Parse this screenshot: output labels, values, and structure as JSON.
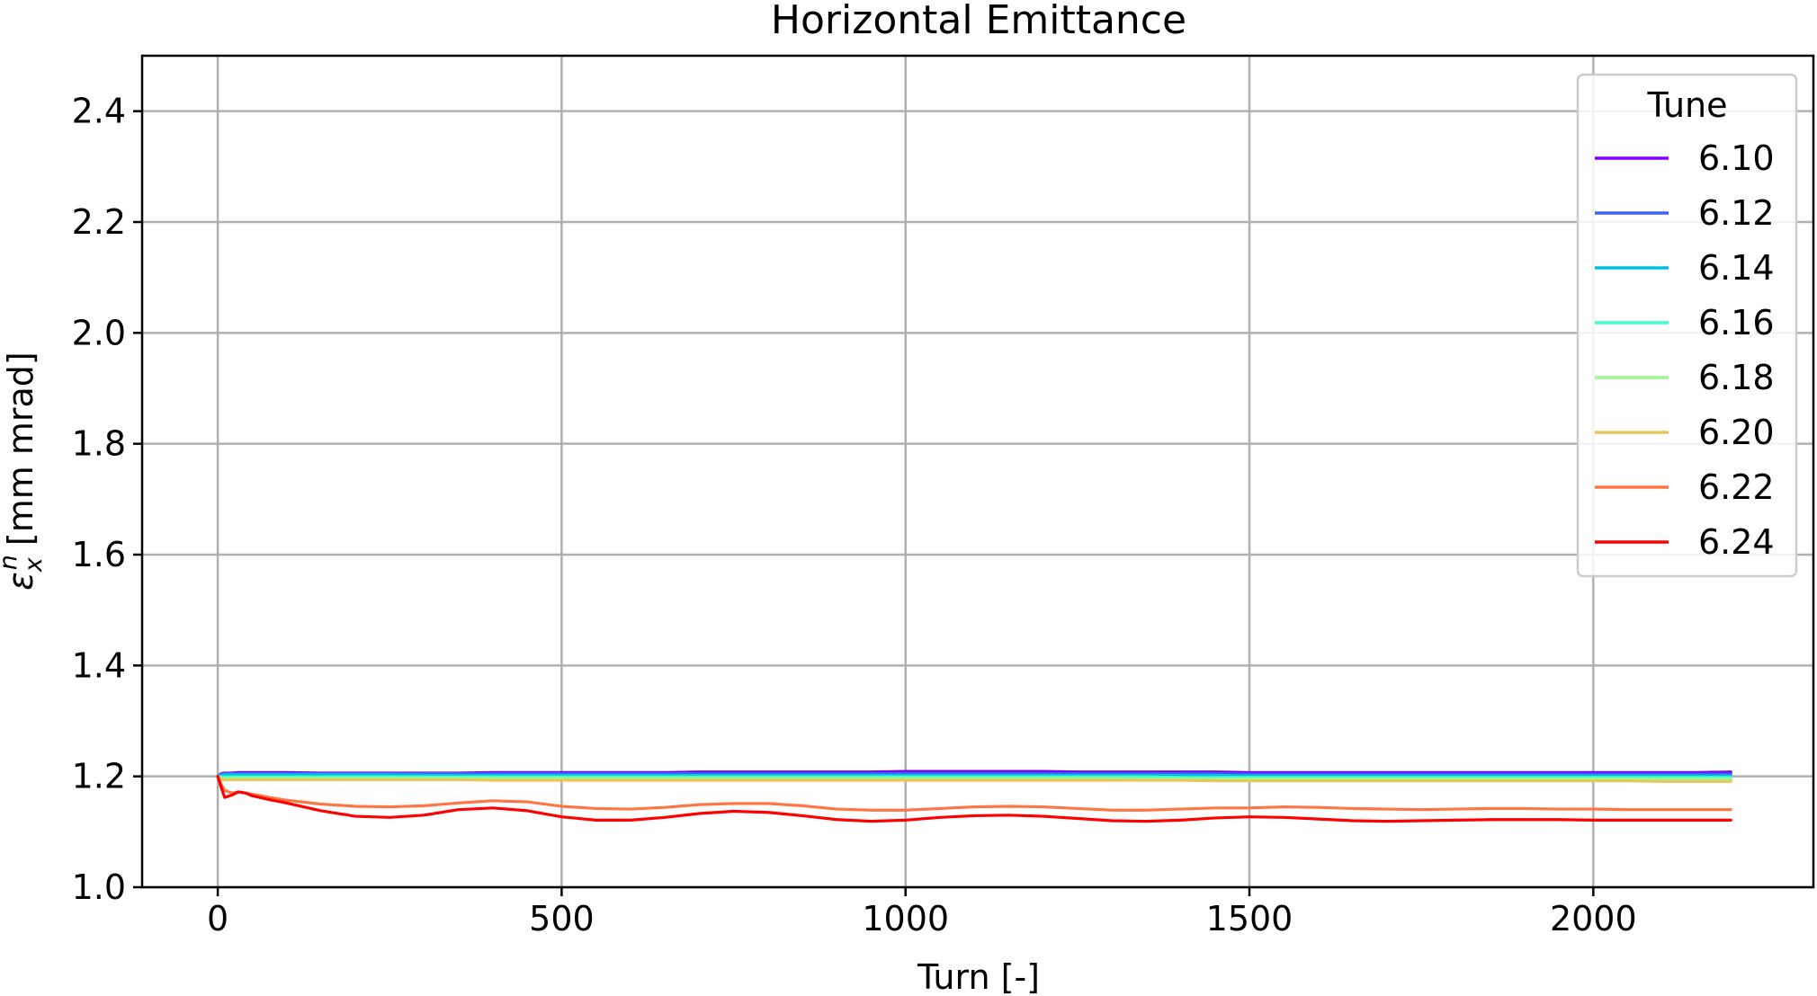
{
  "chart_data": {
    "type": "line",
    "title": "Horizontal Emittance",
    "xlabel": "Turn [-]",
    "ylabel_parts": {
      "symbol": "ε",
      "superscript": "n",
      "subscript": "x",
      "unit": "[mm mrad]"
    },
    "xlim": [
      -110,
      2320
    ],
    "ylim": [
      1.0,
      2.5
    ],
    "xticks": [
      0,
      500,
      1000,
      1500,
      2000
    ],
    "xtick_labels": [
      "0",
      "500",
      "1000",
      "1500",
      "2000"
    ],
    "yticks": [
      1.0,
      1.2,
      1.4,
      1.6,
      1.8,
      2.0,
      2.2,
      2.4
    ],
    "ytick_labels": [
      "1.0",
      "1.2",
      "1.4",
      "1.6",
      "1.8",
      "2.0",
      "2.2",
      "2.4"
    ],
    "grid": true,
    "legend": {
      "title": "Tune",
      "placement": "top-right"
    },
    "x": [
      0,
      5,
      10,
      20,
      30,
      40,
      50,
      75,
      100,
      150,
      200,
      250,
      300,
      350,
      400,
      450,
      500,
      550,
      600,
      650,
      700,
      750,
      800,
      850,
      900,
      950,
      1000,
      1050,
      1100,
      1150,
      1200,
      1250,
      1300,
      1350,
      1400,
      1450,
      1500,
      1550,
      1600,
      1650,
      1700,
      1750,
      1800,
      1850,
      1900,
      1950,
      2000,
      2050,
      2100,
      2150,
      2200
    ],
    "series": [
      {
        "name": "6.10",
        "color": "#7f00ff",
        "values": [
          1.2,
          1.205,
          1.206,
          1.206,
          1.207,
          1.207,
          1.207,
          1.207,
          1.207,
          1.206,
          1.206,
          1.206,
          1.206,
          1.206,
          1.207,
          1.207,
          1.207,
          1.207,
          1.207,
          1.207,
          1.208,
          1.208,
          1.208,
          1.208,
          1.208,
          1.208,
          1.209,
          1.209,
          1.209,
          1.209,
          1.209,
          1.208,
          1.208,
          1.208,
          1.208,
          1.208,
          1.207,
          1.207,
          1.207,
          1.207,
          1.207,
          1.207,
          1.207,
          1.207,
          1.207,
          1.207,
          1.207,
          1.207,
          1.207,
          1.207,
          1.208
        ]
      },
      {
        "name": "6.12",
        "color": "#3f61fa",
        "values": [
          1.2,
          1.204,
          1.205,
          1.205,
          1.205,
          1.205,
          1.205,
          1.205,
          1.205,
          1.205,
          1.205,
          1.205,
          1.205,
          1.205,
          1.205,
          1.205,
          1.205,
          1.205,
          1.205,
          1.205,
          1.205,
          1.205,
          1.205,
          1.205,
          1.205,
          1.205,
          1.205,
          1.205,
          1.205,
          1.205,
          1.205,
          1.205,
          1.205,
          1.205,
          1.205,
          1.205,
          1.204,
          1.204,
          1.204,
          1.204,
          1.204,
          1.204,
          1.204,
          1.204,
          1.204,
          1.204,
          1.204,
          1.204,
          1.204,
          1.204,
          1.204
        ]
      },
      {
        "name": "6.14",
        "color": "#00bfe6",
        "values": [
          1.2,
          1.202,
          1.203,
          1.203,
          1.203,
          1.203,
          1.203,
          1.203,
          1.203,
          1.203,
          1.203,
          1.203,
          1.202,
          1.202,
          1.202,
          1.202,
          1.202,
          1.202,
          1.202,
          1.202,
          1.202,
          1.202,
          1.202,
          1.202,
          1.202,
          1.202,
          1.202,
          1.202,
          1.202,
          1.202,
          1.202,
          1.202,
          1.202,
          1.202,
          1.202,
          1.202,
          1.201,
          1.201,
          1.201,
          1.201,
          1.201,
          1.201,
          1.201,
          1.201,
          1.201,
          1.201,
          1.201,
          1.201,
          1.201,
          1.201,
          1.201
        ]
      },
      {
        "name": "6.16",
        "color": "#40ffc8",
        "values": [
          1.2,
          1.199,
          1.199,
          1.199,
          1.199,
          1.199,
          1.199,
          1.199,
          1.199,
          1.199,
          1.199,
          1.199,
          1.199,
          1.199,
          1.199,
          1.199,
          1.199,
          1.199,
          1.199,
          1.199,
          1.199,
          1.199,
          1.199,
          1.199,
          1.199,
          1.199,
          1.199,
          1.199,
          1.199,
          1.199,
          1.199,
          1.199,
          1.199,
          1.199,
          1.198,
          1.198,
          1.198,
          1.198,
          1.198,
          1.198,
          1.198,
          1.198,
          1.198,
          1.198,
          1.198,
          1.198,
          1.198,
          1.198,
          1.198,
          1.198,
          1.198
        ]
      },
      {
        "name": "6.18",
        "color": "#9ff791",
        "values": [
          1.2,
          1.196,
          1.196,
          1.196,
          1.196,
          1.196,
          1.196,
          1.196,
          1.196,
          1.196,
          1.196,
          1.196,
          1.196,
          1.196,
          1.196,
          1.196,
          1.196,
          1.196,
          1.196,
          1.196,
          1.196,
          1.196,
          1.196,
          1.196,
          1.196,
          1.196,
          1.196,
          1.196,
          1.196,
          1.196,
          1.196,
          1.196,
          1.196,
          1.195,
          1.195,
          1.195,
          1.195,
          1.195,
          1.195,
          1.195,
          1.195,
          1.195,
          1.195,
          1.195,
          1.195,
          1.195,
          1.195,
          1.195,
          1.195,
          1.195,
          1.195
        ]
      },
      {
        "name": "6.20",
        "color": "#e6c85a",
        "values": [
          1.2,
          1.194,
          1.194,
          1.194,
          1.194,
          1.194,
          1.194,
          1.194,
          1.194,
          1.194,
          1.194,
          1.194,
          1.194,
          1.194,
          1.193,
          1.193,
          1.193,
          1.193,
          1.193,
          1.193,
          1.193,
          1.193,
          1.193,
          1.193,
          1.193,
          1.193,
          1.193,
          1.193,
          1.193,
          1.193,
          1.193,
          1.193,
          1.193,
          1.193,
          1.193,
          1.192,
          1.192,
          1.192,
          1.192,
          1.192,
          1.192,
          1.192,
          1.192,
          1.192,
          1.192,
          1.192,
          1.192,
          1.192,
          1.191,
          1.191,
          1.191
        ]
      },
      {
        "name": "6.22",
        "color": "#ff7646",
        "values": [
          1.2,
          1.185,
          1.175,
          1.17,
          1.172,
          1.17,
          1.168,
          1.162,
          1.157,
          1.15,
          1.146,
          1.145,
          1.147,
          1.152,
          1.156,
          1.154,
          1.146,
          1.142,
          1.141,
          1.144,
          1.149,
          1.151,
          1.151,
          1.147,
          1.141,
          1.139,
          1.139,
          1.142,
          1.145,
          1.146,
          1.145,
          1.142,
          1.139,
          1.139,
          1.141,
          1.143,
          1.143,
          1.145,
          1.144,
          1.142,
          1.141,
          1.14,
          1.141,
          1.142,
          1.142,
          1.141,
          1.141,
          1.14,
          1.14,
          1.14,
          1.14
        ]
      },
      {
        "name": "6.24",
        "color": "#ff0000",
        "values": [
          1.2,
          1.18,
          1.162,
          1.166,
          1.172,
          1.17,
          1.165,
          1.158,
          1.152,
          1.138,
          1.128,
          1.126,
          1.13,
          1.14,
          1.143,
          1.138,
          1.127,
          1.121,
          1.121,
          1.126,
          1.133,
          1.137,
          1.135,
          1.129,
          1.122,
          1.119,
          1.121,
          1.126,
          1.129,
          1.13,
          1.128,
          1.124,
          1.12,
          1.119,
          1.121,
          1.125,
          1.127,
          1.126,
          1.123,
          1.12,
          1.119,
          1.12,
          1.121,
          1.122,
          1.122,
          1.122,
          1.121,
          1.121,
          1.121,
          1.121,
          1.121
        ]
      }
    ]
  }
}
